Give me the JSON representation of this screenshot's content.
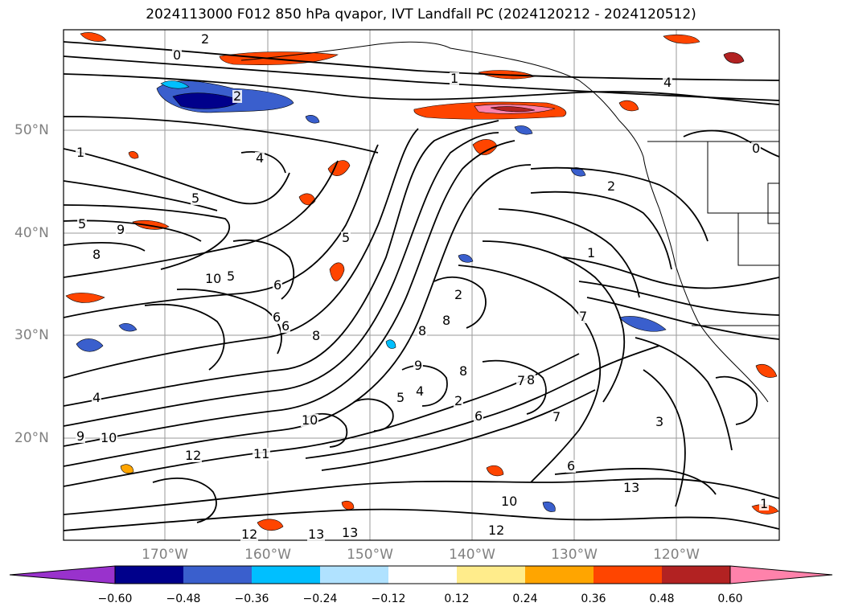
{
  "title": "2024113000 F012 850 hPa qvapor, IVT Landfall PC (2024120212 - 2024120512)",
  "map": {
    "lat_labels": [
      "50°N",
      "40°N",
      "30°N",
      "20°N"
    ],
    "lon_labels": [
      "170°W",
      "160°W",
      "150°W",
      "140°W",
      "130°W",
      "120°W"
    ],
    "lon_range": [
      -178.6,
      -108.6
    ],
    "lat_range": [
      10,
      59.8
    ],
    "contour_color": "#000000",
    "contour_labels": [
      "0",
      "2",
      "1",
      "4",
      "2",
      "1",
      "4",
      "5",
      "5",
      "9",
      "8",
      "10",
      "6",
      "5",
      "6",
      "5",
      "2",
      "1",
      "0",
      "2",
      "8",
      "7",
      "8",
      "9",
      "8",
      "7",
      "6",
      "8",
      "5",
      "4",
      "6",
      "7",
      "8",
      "10",
      "2",
      "4",
      "9",
      "10",
      "11",
      "13",
      "12",
      "13",
      "13",
      "12",
      "10",
      "6",
      "3",
      "12",
      "1"
    ]
  },
  "colorbar": {
    "ticks": [
      "−0.60",
      "−0.48",
      "−0.36",
      "−0.24",
      "−0.12",
      "0.12",
      "0.24",
      "0.36",
      "0.48",
      "0.60"
    ],
    "colors": [
      "#9932cc",
      "#00008b",
      "#3a5fcd",
      "#00bfff",
      "#b0e2ff",
      "#ffffff",
      "#ffec8b",
      "#ffa500",
      "#ff4500",
      "#b22222",
      "#ff82ab"
    ]
  }
}
